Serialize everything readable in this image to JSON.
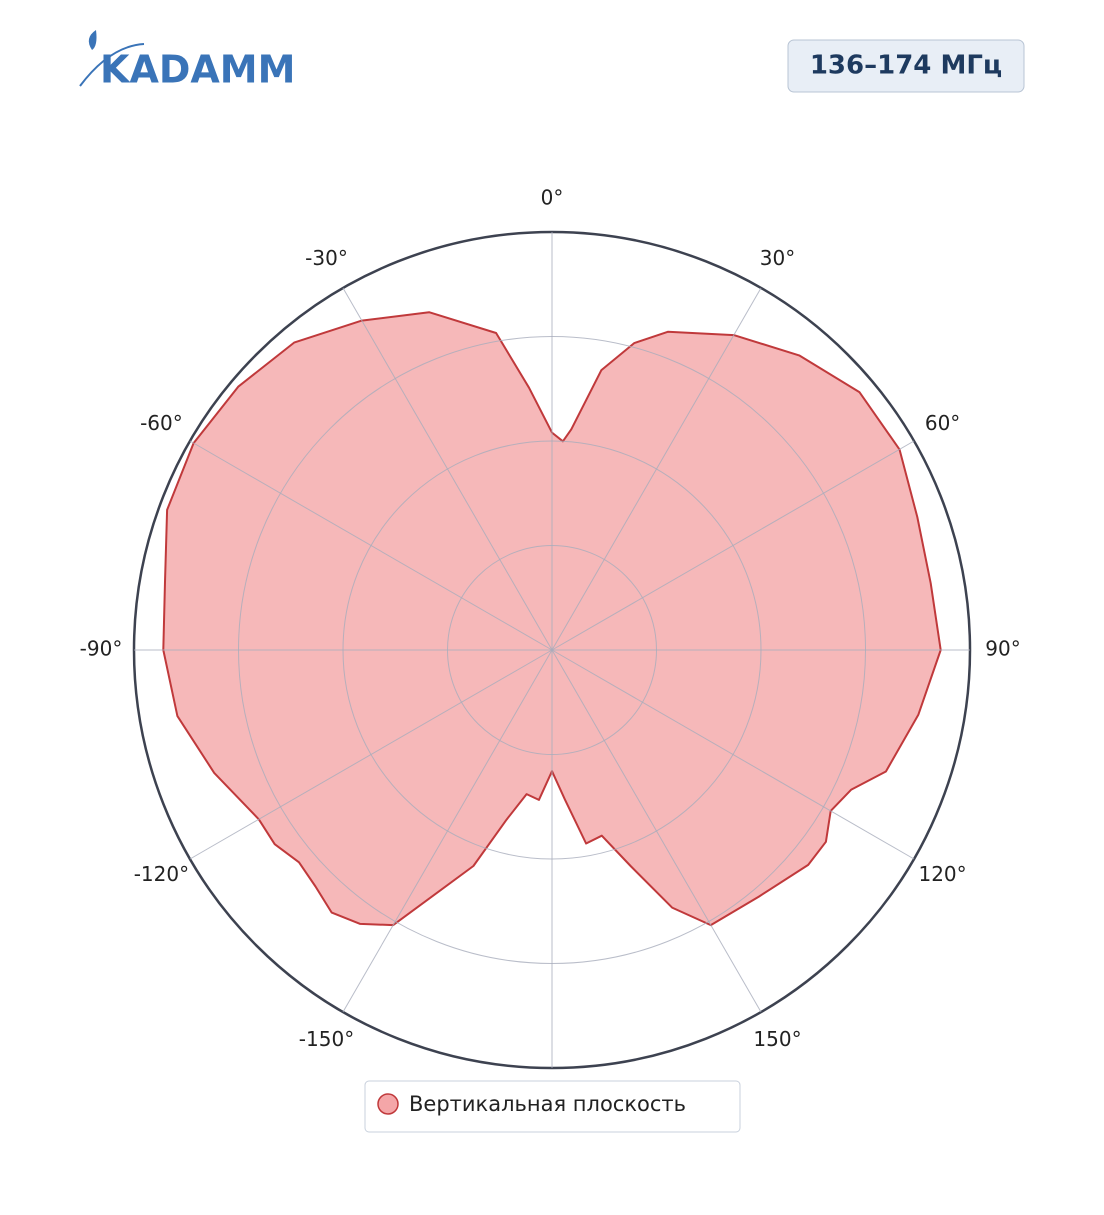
{
  "logo": "KADAMM",
  "badge": "136–174 МГц",
  "chart_data": {
    "type": "polar",
    "series": [
      {
        "name": "Вертикальная плоскость",
        "color": "#c0393b",
        "fill": "#f4a6a8",
        "theta": [
          -180,
          -175,
          -170,
          -165,
          -160,
          -150,
          -145,
          -140,
          -135,
          -130,
          -125,
          -120,
          -110,
          -100,
          -90,
          -80,
          -70,
          -60,
          -50,
          -40,
          -30,
          -20,
          -10,
          -5,
          0,
          3,
          5,
          10,
          15,
          20,
          30,
          40,
          50,
          60,
          70,
          80,
          90,
          100,
          110,
          115,
          120,
          125,
          130,
          140,
          150,
          155,
          160,
          165,
          170,
          175
        ],
        "values": [
          0.29,
          0.36,
          0.35,
          0.42,
          0.55,
          0.76,
          0.8,
          0.82,
          0.8,
          0.79,
          0.81,
          0.81,
          0.86,
          0.91,
          0.93,
          0.94,
          0.98,
          0.99,
          0.98,
          0.96,
          0.91,
          0.86,
          0.77,
          0.63,
          0.52,
          0.5,
          0.53,
          0.68,
          0.76,
          0.81,
          0.87,
          0.92,
          0.96,
          0.96,
          0.93,
          0.92,
          0.93,
          0.89,
          0.85,
          0.79,
          0.77,
          0.8,
          0.8,
          0.77,
          0.76,
          0.68,
          0.55,
          0.46,
          0.47,
          0.36
        ]
      }
    ],
    "rlim": [
      0,
      1
    ],
    "rticks": [
      0.25,
      0.5,
      0.75,
      1
    ],
    "thetaticks": [
      {
        "value": 0,
        "label": "0°"
      },
      {
        "value": 30,
        "label": "30°"
      },
      {
        "value": 60,
        "label": "60°"
      },
      {
        "value": 90,
        "label": "90°"
      },
      {
        "value": 120,
        "label": "120°"
      },
      {
        "value": 150,
        "label": "150°"
      },
      {
        "value": 180,
        "label": null
      },
      {
        "value": -150,
        "label": "-150°"
      },
      {
        "value": -120,
        "label": "-120°"
      },
      {
        "value": -90,
        "label": "-90°"
      },
      {
        "value": -60,
        "label": "-60°"
      },
      {
        "value": -30,
        "label": "-30°"
      }
    ],
    "grid": true
  }
}
